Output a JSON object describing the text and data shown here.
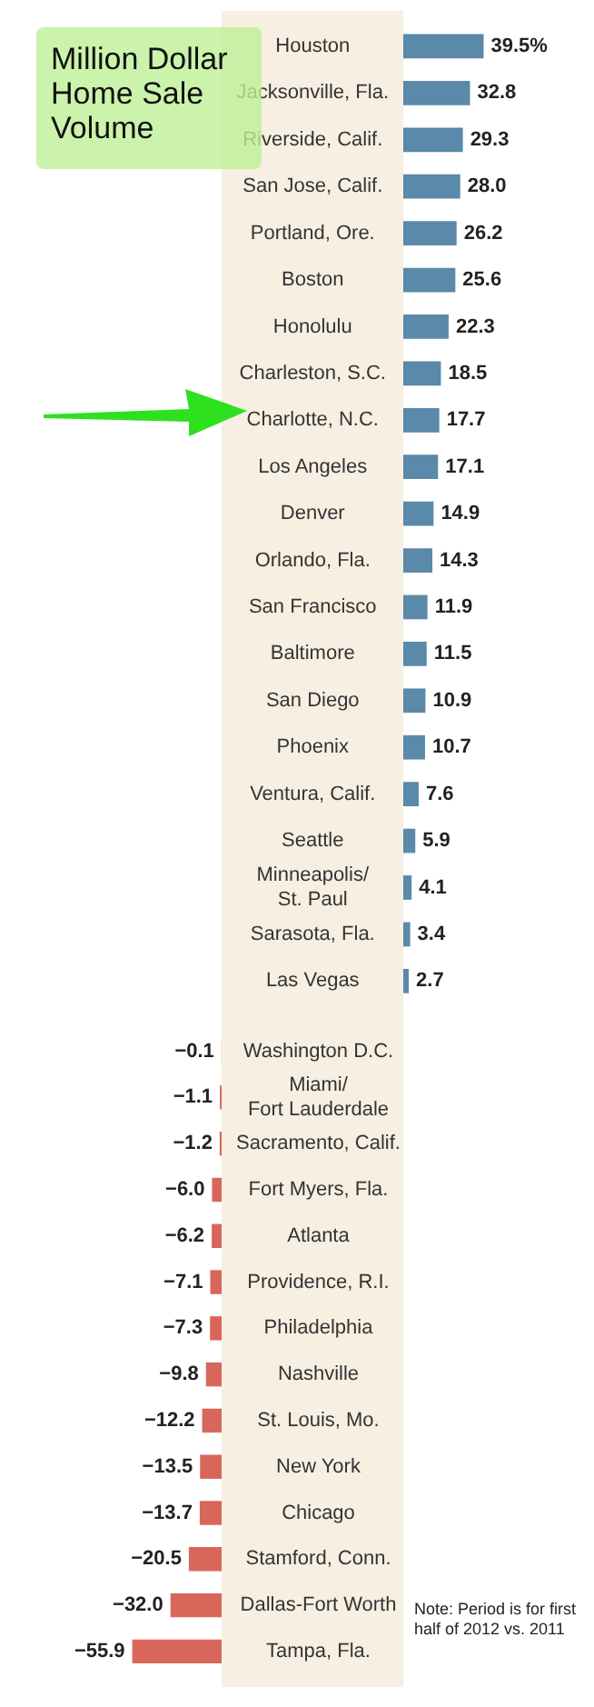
{
  "chart_data": [
    {
      "type": "bar",
      "orientation": "horizontal",
      "title": "Million Dollar Home Sale Volume",
      "categories": [
        "Houston",
        "Jacksonville, Fla.",
        "Riverside, Calif.",
        "San Jose, Calif.",
        "Portland, Ore.",
        "Boston",
        "Honolulu",
        "Charleston, S.C.",
        "Charlotte, N.C.",
        "Los Angeles",
        "Denver",
        "Orlando, Fla.",
        "San Francisco",
        "Baltimore",
        "San Diego",
        "Phoenix",
        "Ventura, Calif.",
        "Seattle",
        "Minneapolis/St. Paul",
        "Sarasota, Fla.",
        "Las Vegas"
      ],
      "values": [
        39.5,
        32.8,
        29.3,
        28.0,
        26.2,
        25.6,
        22.3,
        18.5,
        17.7,
        17.1,
        14.9,
        14.3,
        11.9,
        11.5,
        10.9,
        10.7,
        7.6,
        5.9,
        4.1,
        3.4,
        2.7
      ],
      "value_labels": [
        "39.5%",
        "32.8",
        "29.3",
        "28.0",
        "26.2",
        "25.6",
        "22.3",
        "18.5",
        "17.7",
        "17.1",
        "14.9",
        "14.3",
        "11.9",
        "11.5",
        "10.9",
        "10.7",
        "7.6",
        "5.9",
        "4.1",
        "3.4",
        "2.7"
      ],
      "color": "#5a89aa",
      "tick_labels": "y"
    },
    {
      "type": "bar",
      "orientation": "horizontal",
      "categories": [
        "Washington D.C.",
        "Miami/Fort Lauderdale",
        "Sacramento, Calif.",
        "Fort Myers, Fla.",
        "Atlanta",
        "Providence, R.I.",
        "Philadelphia",
        "Nashville",
        "St. Louis, Mo.",
        "New York",
        "Chicago",
        "Stamford, Conn.",
        "Dallas-Fort Worth",
        "Tampa, Fla."
      ],
      "values": [
        -0.1,
        -1.1,
        -1.2,
        -6.0,
        -6.2,
        -7.1,
        -7.3,
        -9.8,
        -12.2,
        -13.5,
        -13.7,
        -20.5,
        -32.0,
        -55.9
      ],
      "value_labels": [
        "−0.1",
        "−1.1",
        "−1.2",
        "−6.0",
        "−6.2",
        "−7.1",
        "−7.3",
        "−9.8",
        "−12.2",
        "−13.5",
        "−13.7",
        "−20.5",
        "−32.0",
        "−55.9"
      ],
      "color": "#d9665b",
      "tick_labels": "y",
      "annotations": [
        "Note: Period is for first half of 2012 vs. 2011"
      ]
    }
  ]
}
